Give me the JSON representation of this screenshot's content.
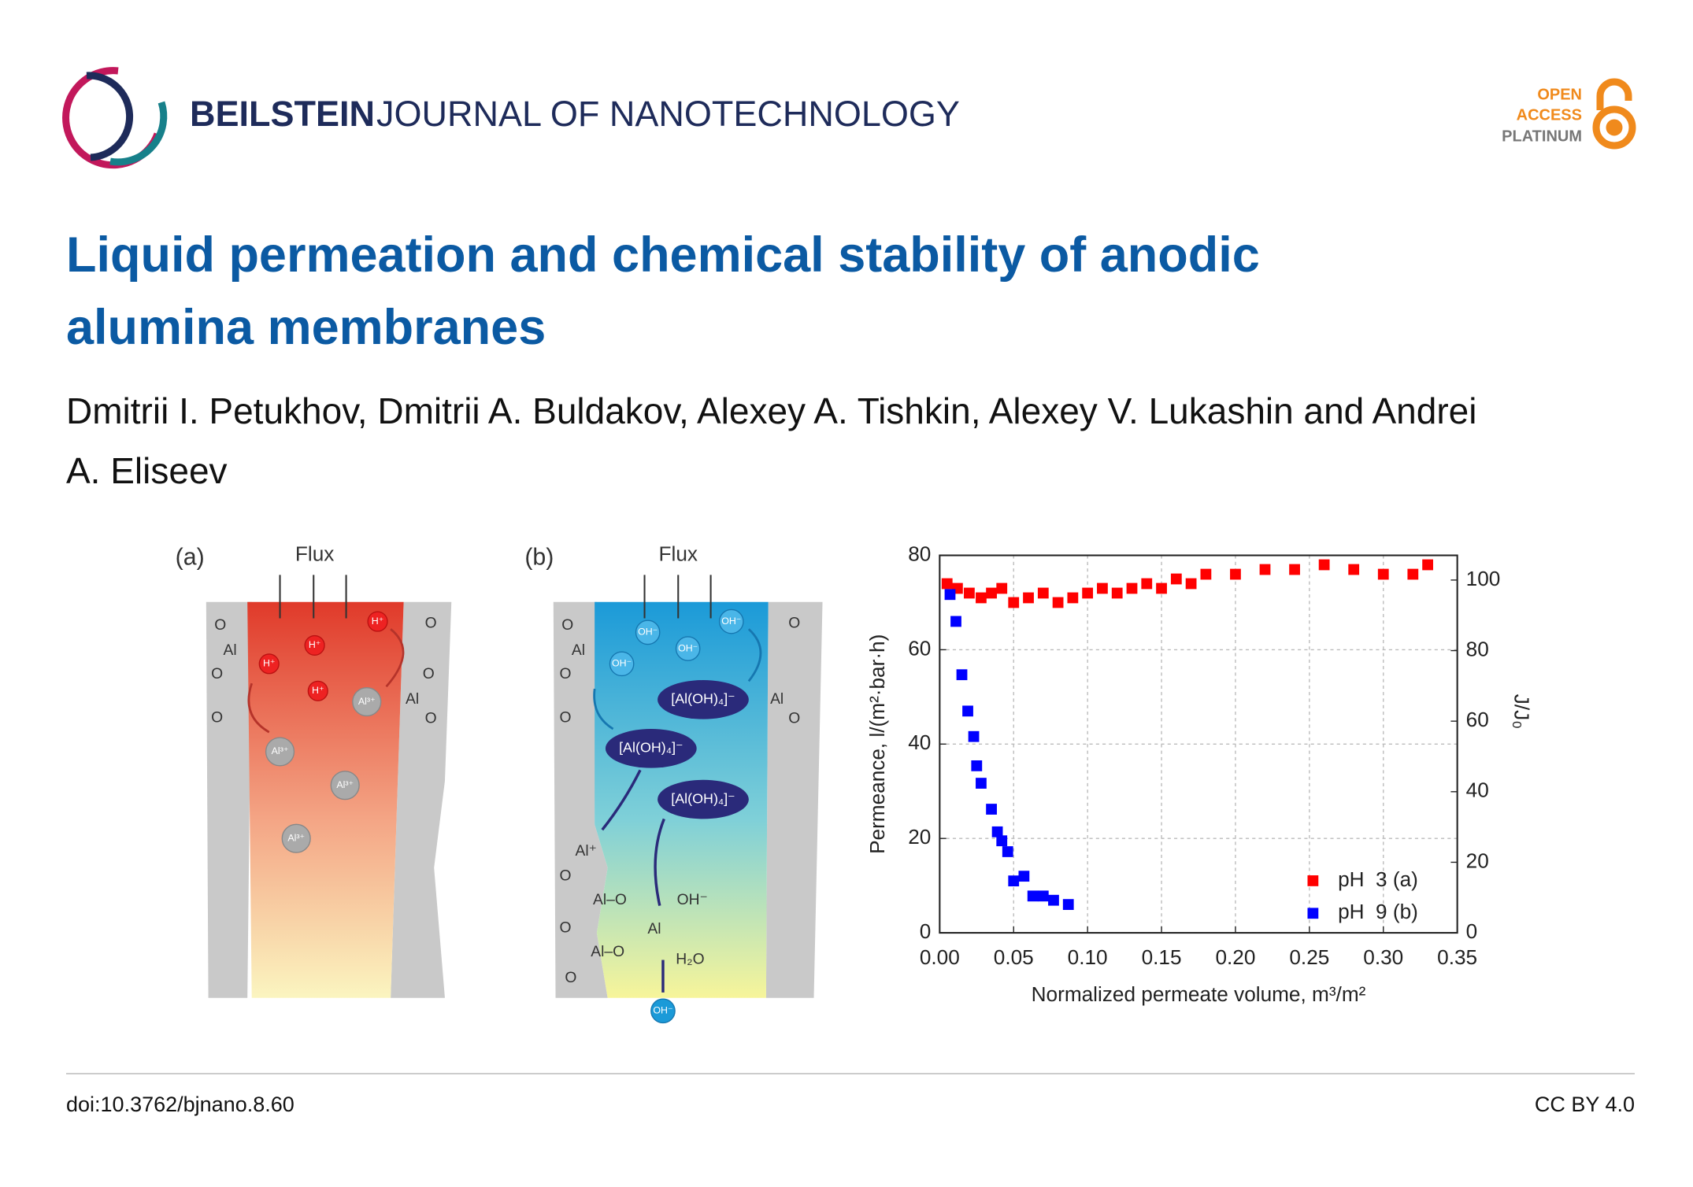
{
  "header": {
    "publisher": "BEILSTEIN",
    "journal": "JOURNAL OF NANOTECHNOLOGY",
    "badge": [
      "OPEN",
      "ACCESS",
      "PLATINUM"
    ]
  },
  "title": "Liquid permeation and chemical stability of anodic alumina membranes",
  "authors": "Dmitrii I. Petukhov, Dmitrii A. Buldakov, Alexey A. Tishkin, Alexey V. Lukashin and Andrei A. Eliseev",
  "figure": {
    "panels": [
      {
        "label": "(a)",
        "flux": "Flux",
        "proton": "H⁺",
        "aluminium": "Al³⁺",
        "surface": [
          "O",
          "Al",
          "O",
          "O",
          "O",
          "O",
          "Al",
          "O"
        ]
      },
      {
        "label": "(b)",
        "flux": "Flux",
        "hydroxide": "OH⁻",
        "complex": "[Al(OH)₄]⁻",
        "surface": [
          "O",
          "Al",
          "O",
          "O",
          "O",
          "Al",
          "O"
        ],
        "reaction": [
          "Al⁺",
          "O",
          "Al–O",
          "O",
          "Al–O",
          "O",
          "Al",
          "OH⁻",
          "H₂O"
        ]
      }
    ]
  },
  "chart_data": {
    "type": "scatter",
    "xlabel": "Normalized permeate volume, m³/m²",
    "ylabel": "Permeance, l/(m²·bar·h)",
    "y2label": "J/J₀",
    "xlim": [
      0,
      0.35
    ],
    "ylim": [
      0,
      80
    ],
    "y2lim": [
      0,
      107
    ],
    "xticks": [
      {
        "value": 0,
        "label": "0.00"
      },
      {
        "value": 0.05,
        "label": "0.05"
      },
      {
        "value": 0.1,
        "label": "0.10"
      },
      {
        "value": 0.15,
        "label": "0.15"
      },
      {
        "value": 0.2,
        "label": "0.20"
      },
      {
        "value": 0.25,
        "label": "0.25"
      },
      {
        "value": 0.3,
        "label": "0.30"
      },
      {
        "value": 0.35,
        "label": "0.35"
      }
    ],
    "yticks": [
      0,
      20,
      40,
      60,
      80
    ],
    "y2ticks": [
      0,
      20,
      40,
      60,
      80,
      100
    ],
    "grid": true,
    "legend": "lower right",
    "series": [
      {
        "name": "pH  3 (a)",
        "color": "#ff0000",
        "x": [
          0.005,
          0.012,
          0.02,
          0.028,
          0.035,
          0.042,
          0.05,
          0.06,
          0.07,
          0.08,
          0.09,
          0.1,
          0.11,
          0.12,
          0.13,
          0.14,
          0.15,
          0.16,
          0.17,
          0.18,
          0.2,
          0.22,
          0.24,
          0.26,
          0.28,
          0.3,
          0.32,
          0.33
        ],
        "values": [
          74,
          73,
          72,
          71,
          72,
          73,
          70,
          71,
          72,
          70,
          71,
          72,
          73,
          72,
          73,
          74,
          73,
          75,
          74,
          76,
          76,
          77,
          77,
          78,
          77,
          76,
          76,
          78
        ]
      },
      {
        "name": "pH  9 (b)",
        "color": "#0000ff",
        "x": [
          0.007,
          0.011,
          0.015,
          0.019,
          0.023,
          0.025,
          0.028,
          0.035,
          0.039,
          0.042,
          0.046,
          0.05,
          0.057,
          0.063,
          0.07,
          0.077,
          0.087
        ],
        "values": [
          71.7,
          66,
          54.7,
          47,
          41.6,
          35.4,
          31.7,
          26.2,
          21.4,
          19.5,
          17.2,
          11,
          12,
          7.8,
          7.8,
          6.9,
          6
        ]
      }
    ]
  },
  "footer": {
    "doi": "doi:10.3762/bjnano.8.60",
    "license": "CC BY 4.0"
  }
}
